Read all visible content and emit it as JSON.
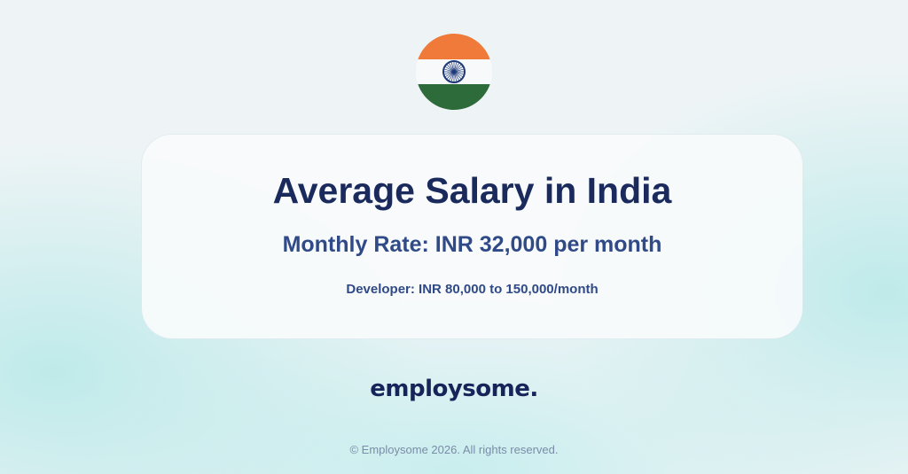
{
  "flag": {
    "icon": "india-flag-icon",
    "colors": {
      "saffron": "#ef7a3a",
      "white": "#f7f9fb",
      "green": "#2e6b3a",
      "chakra": "#1f3a7a"
    }
  },
  "card": {
    "title": "Average Salary in India",
    "monthly_rate": "Monthly Rate: INR 32,000 per month",
    "developer": "Developer: INR 80,000 to 150,000/month"
  },
  "brand": {
    "logo": "employsome."
  },
  "footer": {
    "copyright": "© Employsome 2026. All rights reserved."
  }
}
